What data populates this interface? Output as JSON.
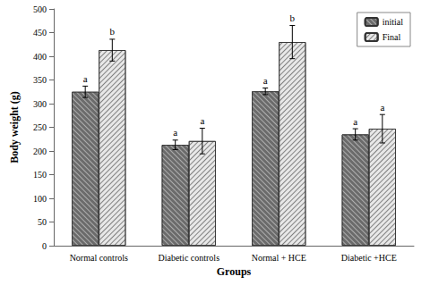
{
  "chart_data": {
    "type": "bar",
    "categories": [
      "Normal controls",
      "Diabetic controls",
      "Normal + HCE",
      "Diabetic +HCE"
    ],
    "x_label": "Groups",
    "y_label": "Body weight (g)",
    "series": [
      {
        "name": "initial",
        "color": "#6b6b6b",
        "values": [
          325,
          213,
          326,
          235
        ],
        "errors": [
          12,
          10,
          7,
          12
        ],
        "annotations": [
          "a",
          "a",
          "a",
          "a"
        ]
      },
      {
        "name": "Final",
        "color": "#e8e8e8",
        "values": [
          413,
          221,
          430,
          247
        ],
        "errors": [
          23,
          27,
          35,
          30
        ],
        "annotations": [
          "b",
          "a",
          "b",
          "a"
        ]
      }
    ],
    "ylim": [
      0,
      500
    ],
    "yticks": [
      0,
      50,
      100,
      150,
      200,
      250,
      300,
      350,
      400,
      450,
      500
    ],
    "grid": false,
    "legend": "upper right"
  }
}
